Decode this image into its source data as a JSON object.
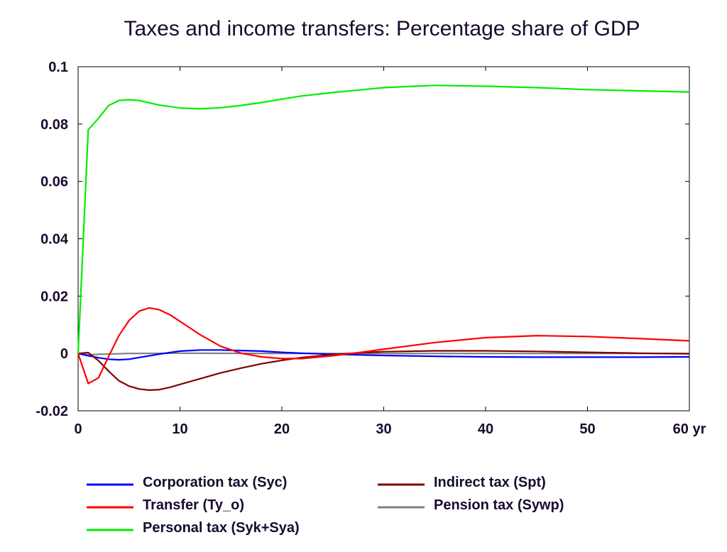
{
  "chart_data": {
    "type": "line",
    "title": "Taxes and income transfers: Percentage share of GDP",
    "xlabel": "",
    "ylabel": "",
    "xlim": [
      0,
      60
    ],
    "ylim": [
      -0.02,
      0.1
    ],
    "x_ticks": [
      {
        "value": 0,
        "label": "0"
      },
      {
        "value": 10,
        "label": "10"
      },
      {
        "value": 20,
        "label": "20"
      },
      {
        "value": 30,
        "label": "30"
      },
      {
        "value": 40,
        "label": "40"
      },
      {
        "value": 50,
        "label": "50"
      },
      {
        "value": 60,
        "label": "60 yr"
      }
    ],
    "y_ticks": [
      {
        "value": -0.02,
        "label": "-0.02"
      },
      {
        "value": 0,
        "label": "0"
      },
      {
        "value": 0.02,
        "label": "0.02"
      },
      {
        "value": 0.04,
        "label": "0.04"
      },
      {
        "value": 0.06,
        "label": "0.06"
      },
      {
        "value": 0.08,
        "label": "0.08"
      },
      {
        "value": 0.1,
        "label": "0.1"
      }
    ],
    "grid": false,
    "legend_position": "bottom",
    "series": [
      {
        "name": "Corporation tax (Syc)",
        "color": "#0000ff",
        "x": [
          0,
          1,
          2,
          3,
          4,
          5,
          6,
          7,
          8,
          10,
          12,
          14,
          16,
          18,
          20,
          22,
          25,
          30,
          35,
          40,
          45,
          50,
          55,
          60
        ],
        "y": [
          0,
          -0.0008,
          -0.0015,
          -0.002,
          -0.0022,
          -0.002,
          -0.0014,
          -0.0008,
          -0.0002,
          0.0008,
          0.0012,
          0.0012,
          0.001,
          0.0008,
          0.0004,
          0.0001,
          -0.0003,
          -0.0007,
          -0.001,
          -0.0012,
          -0.0013,
          -0.0013,
          -0.0013,
          -0.0012
        ]
      },
      {
        "name": "Indirect tax (Spt)",
        "color": "#800000",
        "x": [
          0,
          1,
          2,
          3,
          4,
          5,
          6,
          7,
          8,
          9,
          10,
          12,
          14,
          16,
          18,
          20,
          22,
          25,
          28,
          30,
          35,
          40,
          45,
          50,
          55,
          60
        ],
        "y": [
          0,
          0.0003,
          -0.0025,
          -0.0062,
          -0.0095,
          -0.0114,
          -0.0124,
          -0.0128,
          -0.0126,
          -0.0118,
          -0.0108,
          -0.0088,
          -0.0068,
          -0.0051,
          -0.0036,
          -0.0024,
          -0.0014,
          -0.0004,
          0.0003,
          0.0006,
          0.0009,
          0.0009,
          0.0007,
          0.0004,
          0.0001,
          -0.0001
        ]
      },
      {
        "name": "Transfer (Ty_o)",
        "color": "#ff0000",
        "x": [
          0,
          1,
          2,
          3,
          4,
          5,
          6,
          7,
          8,
          9,
          10,
          12,
          14,
          16,
          18,
          20,
          22,
          25,
          28,
          30,
          35,
          40,
          45,
          50,
          55,
          60
        ],
        "y": [
          0,
          -0.0105,
          -0.0085,
          -0.001,
          0.0062,
          0.0115,
          0.0148,
          0.0159,
          0.0152,
          0.0135,
          0.0112,
          0.0065,
          0.0025,
          0.0001,
          -0.0012,
          -0.0018,
          -0.0018,
          -0.0008,
          0.0005,
          0.0015,
          0.0038,
          0.0055,
          0.0062,
          0.0059,
          0.0052,
          0.0044
        ]
      },
      {
        "name": "Pension tax (Sywp)",
        "color": "#808080",
        "x": [
          0,
          1,
          2,
          5,
          10,
          20,
          30,
          40,
          50,
          60
        ],
        "y": [
          0,
          -0.0005,
          -0.0003,
          0,
          0.0001,
          0,
          0,
          0,
          0,
          0
        ]
      },
      {
        "name": "Personal tax (Syk+Sya)",
        "color": "#00ee00",
        "x": [
          0,
          1,
          2,
          3,
          4,
          5,
          6,
          7,
          8,
          10,
          12,
          14,
          16,
          18,
          20,
          22,
          25,
          28,
          30,
          35,
          40,
          45,
          50,
          55,
          60
        ],
        "y": [
          0,
          0.078,
          0.082,
          0.0865,
          0.0882,
          0.0885,
          0.0882,
          0.0874,
          0.0866,
          0.0856,
          0.0853,
          0.0857,
          0.0865,
          0.0875,
          0.0887,
          0.0898,
          0.091,
          0.092,
          0.0927,
          0.0935,
          0.0932,
          0.0927,
          0.092,
          0.0916,
          0.0912
        ]
      }
    ],
    "legend": [
      {
        "series": 0,
        "label": "Corporation tax (Syc)"
      },
      {
        "series": 1,
        "label": "Indirect tax (Spt)"
      },
      {
        "series": 2,
        "label": "Transfer (Ty_o)"
      },
      {
        "series": 3,
        "label": "Pension tax (Sywp)"
      },
      {
        "series": 4,
        "label": "Personal tax (Syk+Sya)"
      }
    ]
  }
}
